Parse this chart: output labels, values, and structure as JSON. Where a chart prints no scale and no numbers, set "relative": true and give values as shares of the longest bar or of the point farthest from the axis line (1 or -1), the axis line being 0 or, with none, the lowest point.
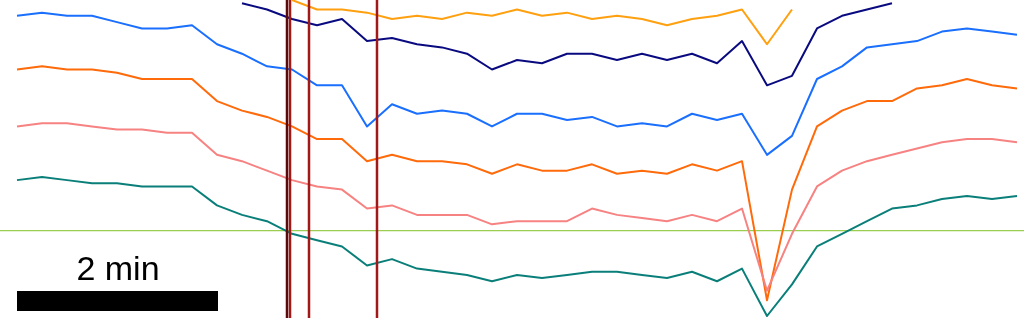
{
  "chart_data": {
    "type": "line",
    "relative": true,
    "line_style": "solid",
    "categories": [
      null,
      null,
      null,
      null,
      null,
      null,
      null,
      null,
      null,
      null,
      null,
      null,
      null,
      null,
      null,
      null,
      null,
      null,
      null,
      null,
      null,
      null,
      null,
      null,
      null,
      null,
      null,
      null,
      null,
      null,
      null,
      null,
      null,
      null,
      null,
      null,
      null,
      null,
      null,
      null,
      null
    ],
    "series": [
      {
        "color": "#ffa010",
        "values": [
          null,
          null,
          null,
          null,
          null,
          null,
          null,
          null,
          null,
          null,
          null,
          1,
          0.97,
          0.97,
          0.96,
          0.94,
          0.95,
          0.94,
          0.96,
          0.95,
          0.97,
          0.95,
          0.96,
          0.94,
          0.95,
          0.94,
          0.92,
          0.94,
          0.95,
          0.97,
          0.86,
          0.97,
          null,
          null,
          null,
          null,
          null,
          null,
          null,
          null,
          null
        ]
      },
      {
        "color": "#0a0a80",
        "values": [
          null,
          null,
          null,
          null,
          null,
          null,
          null,
          null,
          null,
          0.99,
          0.97,
          0.94,
          0.92,
          0.94,
          0.87,
          0.88,
          0.86,
          0.85,
          0.83,
          0.78,
          0.81,
          0.8,
          0.83,
          0.83,
          0.81,
          0.83,
          0.81,
          0.83,
          0.8,
          0.87,
          0.73,
          0.76,
          0.91,
          0.95,
          0.97,
          0.99,
          null,
          null,
          null,
          null,
          null
        ]
      },
      {
        "color": "#1a6fff",
        "values": [
          0.95,
          0.96,
          0.95,
          0.95,
          0.93,
          0.91,
          0.91,
          0.92,
          0.86,
          0.83,
          0.79,
          0.78,
          0.73,
          0.73,
          0.6,
          0.67,
          0.64,
          0.65,
          0.64,
          0.6,
          0.64,
          0.64,
          0.62,
          0.63,
          0.6,
          0.61,
          0.6,
          0.64,
          0.62,
          0.64,
          0.51,
          0.57,
          0.75,
          0.79,
          0.85,
          0.86,
          0.87,
          0.9,
          0.91,
          0.9,
          0.89
        ]
      },
      {
        "color": "#ff6a0a",
        "values": [
          0.78,
          0.79,
          0.78,
          0.78,
          0.77,
          0.75,
          0.75,
          0.75,
          0.68,
          0.65,
          0.63,
          0.6,
          0.56,
          0.56,
          0.49,
          0.51,
          0.49,
          0.49,
          0.48,
          0.45,
          0.48,
          0.46,
          0.46,
          0.48,
          0.45,
          0.46,
          0.45,
          0.48,
          0.46,
          0.49,
          0.05,
          0.4,
          0.6,
          0.65,
          0.68,
          0.68,
          0.72,
          0.73,
          0.75,
          0.73,
          0.72
        ]
      },
      {
        "color": "#f78282",
        "values": [
          0.6,
          0.61,
          0.61,
          0.6,
          0.59,
          0.59,
          0.58,
          0.58,
          0.51,
          0.49,
          0.46,
          0.43,
          0.41,
          0.4,
          0.34,
          0.35,
          0.32,
          0.32,
          0.32,
          0.29,
          0.3,
          0.3,
          0.3,
          0.34,
          0.32,
          0.31,
          0.3,
          0.32,
          0.3,
          0.34,
          0.08,
          0.26,
          0.41,
          0.46,
          0.49,
          0.51,
          0.53,
          0.55,
          0.56,
          0.56,
          0.55
        ]
      },
      {
        "color": "#0a7f7a",
        "values": [
          0.43,
          0.44,
          0.43,
          0.42,
          0.42,
          0.41,
          0.41,
          0.41,
          0.35,
          0.32,
          0.3,
          0.26,
          0.24,
          0.22,
          0.16,
          0.18,
          0.15,
          0.14,
          0.13,
          0.11,
          0.13,
          0.12,
          0.13,
          0.14,
          0.14,
          0.13,
          0.12,
          0.14,
          0.11,
          0.15,
          0,
          0.1,
          0.22,
          0.26,
          0.3,
          0.34,
          0.35,
          0.37,
          0.38,
          0.37,
          0.38
        ]
      }
    ],
    "ref_lines": [
      {
        "axis": "y",
        "value": 0.27,
        "color": "#9acd50"
      }
    ],
    "annotations": [
      "2 min"
    ]
  }
}
